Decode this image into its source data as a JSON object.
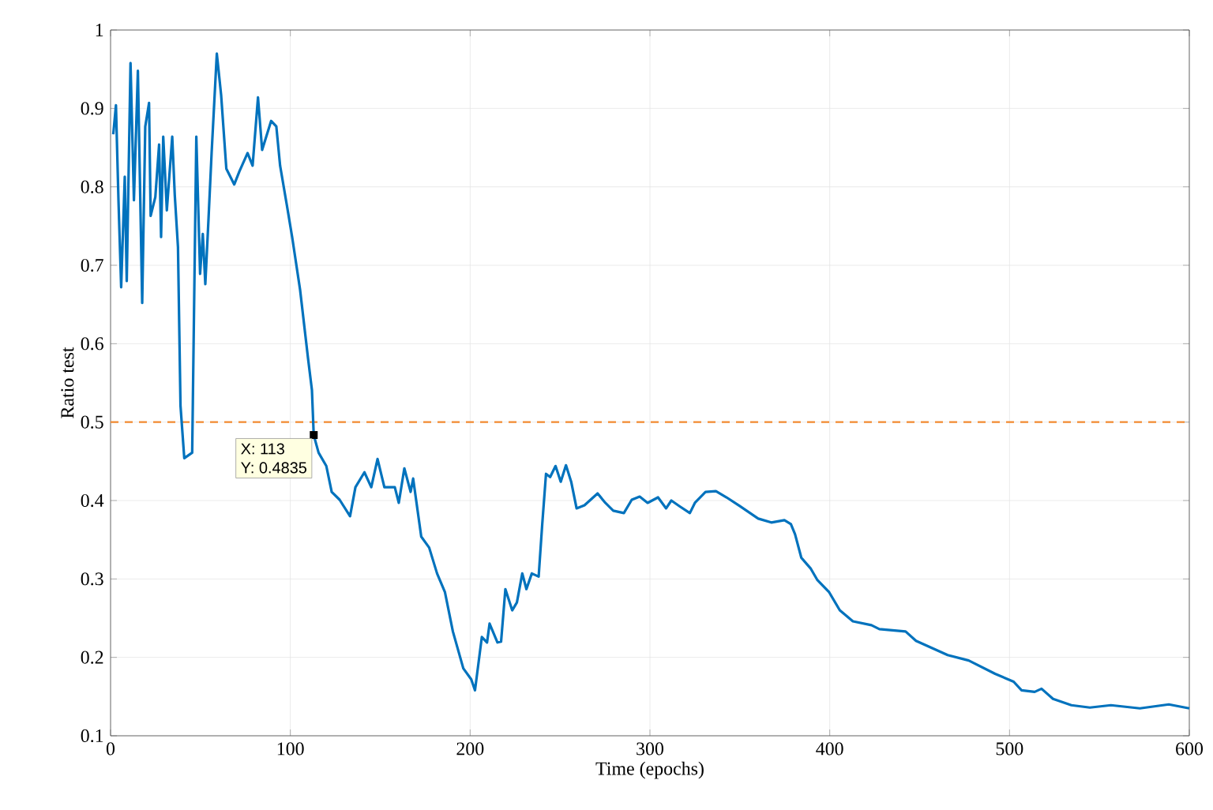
{
  "chart_data": {
    "type": "line",
    "xlabel": "Time (epochs)",
    "ylabel": "Ratio test",
    "xlim": [
      0,
      600
    ],
    "ylim": [
      0.1,
      1
    ],
    "xticks": [
      0,
      100,
      200,
      300,
      400,
      500,
      600
    ],
    "yticks": [
      0.1,
      0.2,
      0.3,
      0.4,
      0.5,
      0.6,
      0.7,
      0.8,
      0.9,
      1
    ],
    "grid": true,
    "line_style": "solid",
    "series": [
      {
        "color": "#0072bd",
        "x": [
          1.5,
          3,
          4.4,
          5.9,
          7.9,
          9,
          11.1,
          13,
          15.2,
          17.6,
          19.3,
          21.4,
          22.3,
          24.9,
          27,
          28.1,
          29.3,
          31.3,
          34.3,
          35.7,
          37.5,
          38.9,
          41,
          45.4,
          47.7,
          49.8,
          51.3,
          52.7,
          54.5,
          56.2,
          59.1,
          61.5,
          64.4,
          68.8,
          71.7,
          76.2,
          79,
          82,
          84.3,
          89.3,
          92.2,
          94.3,
          98.1,
          101,
          105.4,
          109.8,
          112,
          113,
          115.7,
          120,
          123,
          127.4,
          133.2,
          136.2,
          141.2,
          145,
          148.5,
          152.3,
          158.1,
          160.3,
          163.4,
          166.9,
          168.3,
          172.8,
          177.2,
          181.6,
          186,
          190.4,
          196.2,
          200.6,
          202.7,
          206.5,
          209.4,
          210.8,
          215.2,
          217.2,
          219.6,
          223.4,
          226,
          229,
          231.3,
          234.3,
          238.1,
          240.1,
          242.2,
          244.5,
          247.5,
          250.4,
          253.3,
          256.2,
          259.2,
          263.6,
          270.9,
          275.2,
          279.6,
          285.5,
          289.9,
          294.3,
          298.7,
          304.5,
          309,
          311.9,
          316.3,
          322.2,
          325,
          330.9,
          336.7,
          342.6,
          349.9,
          360.2,
          367.5,
          374.8,
          378.4,
          380.7,
          384.2,
          389.5,
          393,
          399.7,
          405.6,
          412.9,
          423.2,
          427.6,
          442.2,
          448,
          465.6,
          477.3,
          492,
          502.3,
          506.7,
          514,
          517.8,
          524.2,
          534.4,
          544.7,
          556.4,
          572.5,
          588.6,
          600
        ],
        "values": [
          0.867,
          0.904,
          0.783,
          0.672,
          0.813,
          0.68,
          0.958,
          0.783,
          0.948,
          0.652,
          0.877,
          0.907,
          0.763,
          0.787,
          0.854,
          0.736,
          0.864,
          0.77,
          0.864,
          0.79,
          0.723,
          0.521,
          0.454,
          0.461,
          0.864,
          0.689,
          0.74,
          0.676,
          0.76,
          0.843,
          0.97,
          0.917,
          0.823,
          0.803,
          0.82,
          0.843,
          0.827,
          0.914,
          0.847,
          0.884,
          0.877,
          0.827,
          0.776,
          0.736,
          0.669,
          0.582,
          0.541,
          0.4835,
          0.461,
          0.444,
          0.411,
          0.401,
          0.38,
          0.417,
          0.436,
          0.417,
          0.453,
          0.417,
          0.417,
          0.397,
          0.441,
          0.411,
          0.428,
          0.354,
          0.34,
          0.307,
          0.283,
          0.233,
          0.186,
          0.172,
          0.158,
          0.226,
          0.219,
          0.243,
          0.219,
          0.22,
          0.287,
          0.26,
          0.27,
          0.307,
          0.287,
          0.307,
          0.303,
          0.37,
          0.434,
          0.43,
          0.444,
          0.424,
          0.445,
          0.424,
          0.39,
          0.394,
          0.409,
          0.397,
          0.387,
          0.384,
          0.401,
          0.405,
          0.397,
          0.404,
          0.39,
          0.4,
          0.393,
          0.384,
          0.397,
          0.411,
          0.412,
          0.404,
          0.393,
          0.377,
          0.372,
          0.375,
          0.37,
          0.357,
          0.327,
          0.313,
          0.299,
          0.283,
          0.26,
          0.246,
          0.241,
          0.236,
          0.233,
          0.221,
          0.203,
          0.196,
          0.179,
          0.169,
          0.158,
          0.156,
          0.16,
          0.147,
          0.139,
          0.136,
          0.139,
          0.135,
          0.14,
          0.135
        ]
      }
    ],
    "ref_lines": [
      {
        "axis": "y",
        "value": 0.5,
        "color": "#f28a30",
        "line_style": "dashed"
      }
    ],
    "annotations": [
      {
        "text": "X: 113",
        "x": 113,
        "y": 0.4835
      },
      "Y: 0.4835"
    ]
  }
}
